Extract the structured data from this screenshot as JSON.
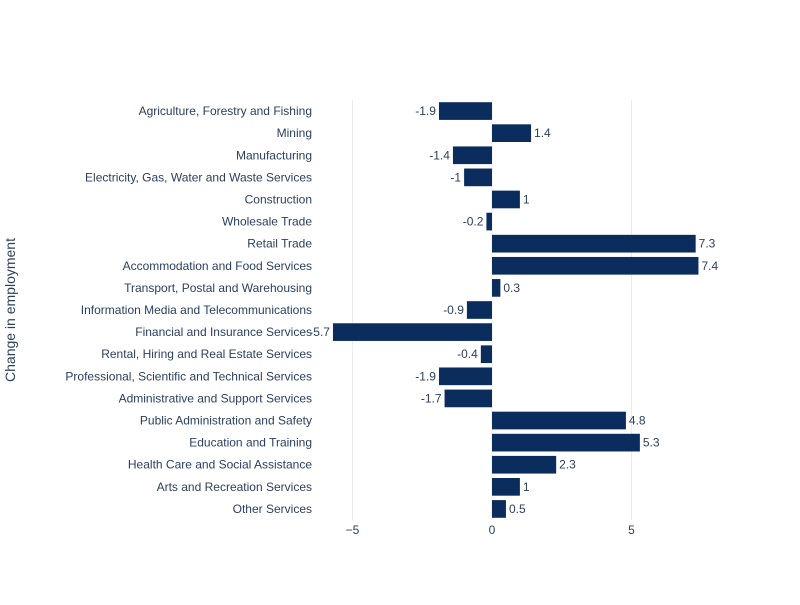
{
  "chart_data": {
    "type": "bar",
    "orientation": "horizontal",
    "categories": [
      "Agriculture, Forestry and Fishing",
      "Mining",
      "Manufacturing",
      "Electricity, Gas, Water and Waste Services",
      "Construction",
      "Wholesale Trade",
      "Retail Trade",
      "Accommodation and Food Services",
      "Transport, Postal and Warehousing",
      "Information Media and Telecommunications",
      "Financial and Insurance Services",
      "Rental, Hiring and Real Estate Services",
      "Professional, Scientific and Technical Services",
      "Administrative and Support Services",
      "Public Administration and Safety",
      "Education and Training",
      "Health Care and Social Assistance",
      "Arts and Recreation Services",
      "Other Services"
    ],
    "values": [
      -1.9,
      1.4,
      -1.4,
      -1,
      1,
      -0.2,
      7.3,
      7.4,
      0.3,
      -0.9,
      -5.7,
      -0.4,
      -1.9,
      -1.7,
      4.8,
      5.3,
      2.3,
      1,
      0.5
    ],
    "value_labels": [
      "-1.9",
      "1.4",
      "-1.4",
      "-1",
      "1",
      "-0.2",
      "7.3",
      "7.4",
      "0.3",
      "-0.9",
      "-5.7",
      "-0.4",
      "-1.9",
      "-1.7",
      "4.8",
      "5.3",
      "2.3",
      "1",
      "0.5"
    ],
    "ylabel": "Change in employment",
    "xticks": [
      -5,
      0,
      5
    ],
    "xtick_labels": [
      "−5",
      "0",
      "5"
    ],
    "xlim": [
      -5.7,
      7.4
    ],
    "grid": true,
    "bar_color": "#0b2d5e",
    "grid_color": "#ebebeb",
    "text_color": "#2a3f5f"
  }
}
